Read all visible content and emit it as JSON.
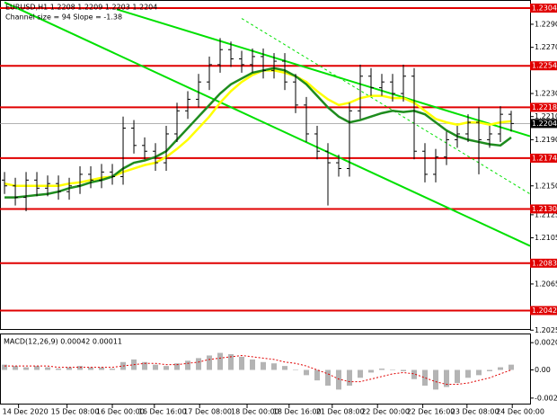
{
  "chart_data": {
    "type": "ohlc",
    "title": "EURUSD,H1 1.2208 1.2209 1.2203 1.2204",
    "subtitle": "Channel size = 94 Slope = -1.38",
    "xlim": [
      -0.42,
      48.75
    ],
    "xticks": [
      {
        "value": 1.3,
        "label": "14 Dec 2020"
      },
      {
        "value": 5.8,
        "label": "15 Dec 08:00"
      },
      {
        "value": 10,
        "label": "16 Dec 00:00"
      },
      {
        "value": 13.9,
        "label": "16 Dec 16:00"
      },
      {
        "value": 18.1,
        "label": "17 Dec 08:00"
      },
      {
        "value": 22.5,
        "label": "18 Dec 00:00"
      },
      {
        "value": 26.4,
        "label": "18 Dec 16:00"
      },
      {
        "value": 30.4,
        "label": "21 Dec 08:00"
      },
      {
        "value": 34.6,
        "label": "22 Dec 00:00"
      },
      {
        "value": 38.8,
        "label": "22 Dec 16:00"
      },
      {
        "value": 42.9,
        "label": "23 Dec 08:00"
      },
      {
        "value": 47.1,
        "label": "24 Dec 00:00"
      }
    ],
    "ylim": [
      1.2026,
      1.2311
    ],
    "yticks": [
      {
        "value": 1.229,
        "label": "1.2290"
      },
      {
        "value": 1.227,
        "label": "1.2270"
      },
      {
        "value": 1.223,
        "label": "1.2230"
      },
      {
        "value": 1.221,
        "label": "1.2210"
      },
      {
        "value": 1.219,
        "label": "1.2190"
      },
      {
        "value": 1.215,
        "label": "1.2150"
      },
      {
        "value": 1.2125,
        "label": "1.2125"
      },
      {
        "value": 1.2105,
        "label": "1.2105"
      },
      {
        "value": 1.2065,
        "label": "1.2065"
      },
      {
        "value": 1.2025,
        "label": "1.2025"
      }
    ],
    "open": [
      1.2155,
      1.215,
      1.214,
      1.2155,
      1.2148,
      1.2152,
      1.2145,
      1.215,
      1.216,
      1.2155,
      1.2162,
      1.2158,
      1.22,
      1.2185,
      1.218,
      1.217,
      1.2195,
      1.2215,
      1.2225,
      1.224,
      1.2255,
      1.2268,
      1.226,
      1.2255,
      1.2262,
      1.225,
      1.2258,
      1.224,
      1.222,
      1.2195,
      1.218,
      1.217,
      1.2165,
      1.2215,
      1.2245,
      1.2235,
      1.224,
      1.223,
      1.2245,
      1.218,
      1.216,
      1.2175,
      1.219,
      1.2195,
      1.2205,
      1.219,
      1.2195,
      1.2212
    ],
    "high": [
      1.2162,
      1.2157,
      1.2162,
      1.2162,
      1.2159,
      1.2159,
      1.2157,
      1.2167,
      1.2167,
      1.2169,
      1.2169,
      1.221,
      1.2207,
      1.2192,
      1.2187,
      1.2202,
      1.2222,
      1.2232,
      1.2247,
      1.2262,
      1.2278,
      1.2275,
      1.2267,
      1.2269,
      1.2269,
      1.2265,
      1.2265,
      1.2247,
      1.2227,
      1.2202,
      1.2187,
      1.2177,
      1.2222,
      1.2255,
      1.2252,
      1.2247,
      1.2247,
      1.2255,
      1.2252,
      1.2187,
      1.2182,
      1.2197,
      1.2202,
      1.2212,
      1.2218,
      1.2202,
      1.2219,
      1.2215
    ],
    "low": [
      1.2143,
      1.2133,
      1.2128,
      1.2141,
      1.2141,
      1.2138,
      1.2138,
      1.2143,
      1.2148,
      1.2148,
      1.2151,
      1.2151,
      1.2178,
      1.2173,
      1.2163,
      1.2163,
      1.2188,
      1.2208,
      1.2218,
      1.2233,
      1.2248,
      1.2253,
      1.2248,
      1.2248,
      1.2243,
      1.2243,
      1.2233,
      1.2213,
      1.2188,
      1.2173,
      1.2133,
      1.2158,
      1.2158,
      1.2208,
      1.2228,
      1.2228,
      1.2223,
      1.2223,
      1.2173,
      1.2153,
      1.2153,
      1.2168,
      1.2183,
      1.2188,
      1.216,
      1.2183,
      1.2188,
      1.2197
    ],
    "close": [
      1.215,
      1.214,
      1.2155,
      1.2148,
      1.2152,
      1.2145,
      1.215,
      1.216,
      1.2155,
      1.2162,
      1.2158,
      1.22,
      1.2185,
      1.218,
      1.217,
      1.2195,
      1.2215,
      1.2225,
      1.224,
      1.2255,
      1.2268,
      1.226,
      1.2255,
      1.2262,
      1.225,
      1.2258,
      1.224,
      1.222,
      1.2195,
      1.218,
      1.217,
      1.2165,
      1.2215,
      1.2245,
      1.2235,
      1.224,
      1.223,
      1.2245,
      1.218,
      1.216,
      1.2175,
      1.219,
      1.2195,
      1.2205,
      1.219,
      1.2195,
      1.2212,
      1.2204
    ],
    "series": [
      {
        "color": "#ffff00",
        "values": [
          1.2152,
          1.215,
          1.215,
          1.215,
          1.215,
          1.215,
          1.2152,
          1.2153,
          1.2155,
          1.2157,
          1.2158,
          1.2162,
          1.2165,
          1.2168,
          1.217,
          1.2175,
          1.2182,
          1.219,
          1.22,
          1.221,
          1.2222,
          1.2232,
          1.224,
          1.2246,
          1.225,
          1.225,
          1.2248,
          1.2245,
          1.224,
          1.2232,
          1.2225,
          1.222,
          1.2222,
          1.2226,
          1.2228,
          1.2228,
          1.2226,
          1.2226,
          1.2222,
          1.2215,
          1.2208,
          1.2205,
          1.2203,
          1.2205,
          1.2205,
          1.2203,
          1.2205,
          1.2206
        ]
      },
      {
        "color": "#1e8c1e",
        "values": [
          1.214,
          1.214,
          1.2141,
          1.2142,
          1.2143,
          1.2145,
          1.2148,
          1.215,
          1.2153,
          1.2155,
          1.2158,
          1.2165,
          1.217,
          1.2172,
          1.2175,
          1.218,
          1.219,
          1.22,
          1.221,
          1.222,
          1.223,
          1.2238,
          1.2243,
          1.2248,
          1.225,
          1.2252,
          1.225,
          1.2245,
          1.2238,
          1.2228,
          1.2218,
          1.221,
          1.2205,
          1.2207,
          1.221,
          1.2213,
          1.2215,
          1.2214,
          1.2215,
          1.2212,
          1.2205,
          1.2198,
          1.2193,
          1.219,
          1.2188,
          1.2186,
          1.2185,
          1.2192
        ]
      }
    ],
    "channel": [
      {
        "color": "#00e000",
        "x": [
          10.4,
          48.75
        ],
        "y": [
          1.2303,
          1.2193
        ]
      },
      {
        "color": "#00e000",
        "x": [
          0,
          48.75
        ],
        "y": [
          1.2309,
          1.2098
        ]
      },
      {
        "color": "#00e000",
        "x": [
          22,
          48.75
        ],
        "y": [
          1.2295,
          1.2143
        ],
        "dashed": true
      }
    ],
    "levels": [
      1.2304,
      1.2254,
      1.2218,
      1.2174,
      1.213,
      1.2083,
      1.2042
    ],
    "level_labels": [
      "1.2304",
      "1.2254",
      "1.2218",
      "1.2174",
      "1.2130",
      "1.2083",
      "1.2042"
    ],
    "level_color": "#e00000",
    "current": 1.2204,
    "current_label": "1.2204",
    "macd": {
      "title": "MACD(12,26,9) 0.00042 0.00011",
      "ylim": [
        -0.00264,
        0.00271
      ],
      "yticks": [
        0.00208,
        {
          "value": 0,
          "label": "0.00"
        },
        -0.00215
      ],
      "values": [
        0.0004,
        0.0003,
        0.0002,
        0.0003,
        0.0002,
        0.0001,
        0.0002,
        0.0003,
        0.0002,
        0.0002,
        0.0001,
        0.0006,
        0.0008,
        0.0006,
        0.0004,
        0.0003,
        0.0005,
        0.0007,
        0.0009,
        0.0011,
        0.0013,
        0.0012,
        0.001,
        0.0008,
        0.0006,
        0.0005,
        0.0003,
        0.0,
        -0.0004,
        -0.0008,
        -0.0012,
        -0.0015,
        -0.0012,
        -0.0006,
        -0.0002,
        0.0001,
        0.0,
        -0.0001,
        -0.0007,
        -0.0012,
        -0.0015,
        -0.0013,
        -0.001,
        -0.0006,
        -0.0004,
        -0.0001,
        0.0002,
        0.0004
      ],
      "color": "#b4b4b4",
      "signal": [
        0.0003,
        0.0003,
        0.0003,
        0.0003,
        0.0003,
        0.0002,
        0.0002,
        0.0002,
        0.0002,
        0.0002,
        0.0002,
        0.0003,
        0.0004,
        0.0005,
        0.0005,
        0.0004,
        0.0004,
        0.0005,
        0.0006,
        0.0008,
        0.0009,
        0.001,
        0.0011,
        0.001,
        0.0009,
        0.0008,
        0.0006,
        0.0005,
        0.0003,
        0.0,
        -0.0003,
        -0.0007,
        -0.0009,
        -0.0009,
        -0.0007,
        -0.0005,
        -0.0003,
        -0.0002,
        -0.0003,
        -0.0006,
        -0.0009,
        -0.0011,
        -0.0011,
        -0.001,
        -0.0008,
        -0.0006,
        -0.0003,
        0.0
      ],
      "signal_color": "#e00000"
    }
  }
}
